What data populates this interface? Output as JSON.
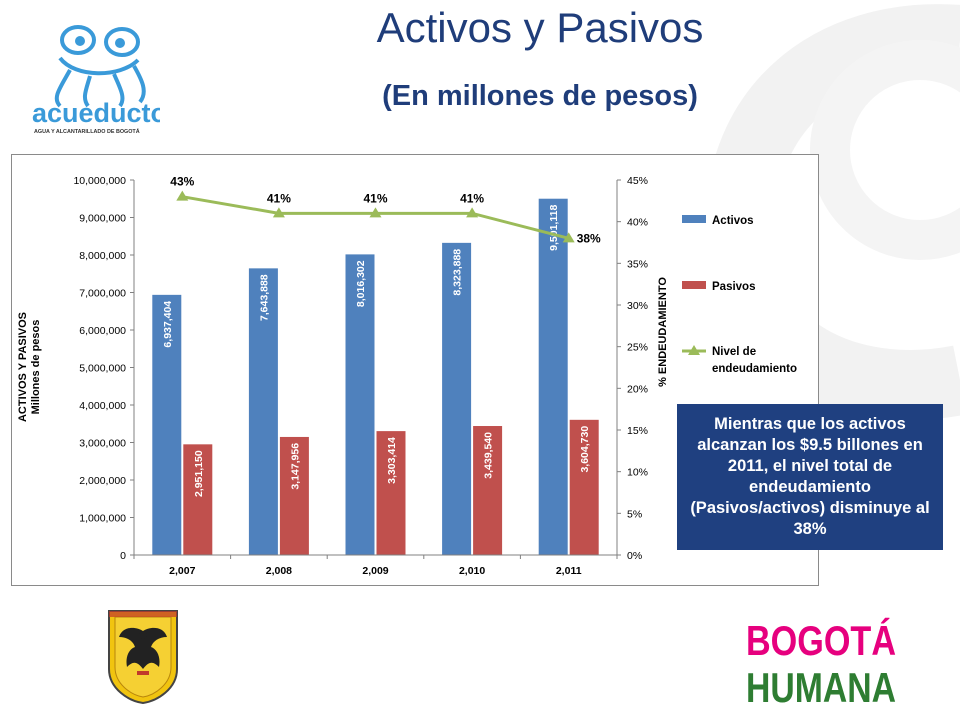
{
  "header": {
    "title": "Activos y Pasivos",
    "subtitle": "(En millones de pesos)"
  },
  "logos": {
    "acueducto_text": "acueducto",
    "acueducto_tagline": "AGUA Y ALCANTARILLADO DE BOGOTÁ",
    "bogota_line1": "BOGOTÁ",
    "bogota_line2": "HUMANA"
  },
  "callout": {
    "text": "Mientras que los activos alcanzan los $9.5 billones en 2011, el nivel total de endeudamiento (Pasivos/activos) disminuye al 38%"
  },
  "colors": {
    "activos": "#4f81bd",
    "pasivos": "#c0504d",
    "nivel": "#9bbb59",
    "title": "#1f3d7a",
    "callout_bg": "#1f4080"
  },
  "chart_data": {
    "type": "bar",
    "categories": [
      "2,007",
      "2,008",
      "2,009",
      "2,010",
      "2,011"
    ],
    "series": [
      {
        "name": "Activos",
        "type": "bar",
        "axis": "left",
        "values": [
          6937404,
          7643888,
          8016302,
          8323888,
          9501118
        ],
        "labels": [
          "6,937,404",
          "7,643,888",
          "8,016,302",
          "8,323,888",
          "9,501,118"
        ]
      },
      {
        "name": "Pasivos",
        "type": "bar",
        "axis": "left",
        "values": [
          2951150,
          3147956,
          3303414,
          3439540,
          3604730
        ],
        "labels": [
          "2,951,150",
          "3,147,956",
          "3,303,414",
          "3,439,540",
          "3,604,730"
        ]
      },
      {
        "name": "Nivel de endeudamiento",
        "type": "line",
        "axis": "right",
        "values": [
          0.43,
          0.41,
          0.41,
          0.41,
          0.38
        ],
        "labels": [
          "43%",
          "41%",
          "41%",
          "41%",
          "38%"
        ]
      }
    ],
    "ylabel_line1": "ACTIVOS Y PASIVOS",
    "ylabel_line2": "Millones de pesos",
    "y2label": "% ENDEUDAMIENTO",
    "ylim": [
      0,
      10000000
    ],
    "y2lim": [
      0,
      0.45
    ],
    "yticks": [
      "0",
      "1,000,000",
      "2,000,000",
      "3,000,000",
      "4,000,000",
      "5,000,000",
      "6,000,000",
      "7,000,000",
      "8,000,000",
      "9,000,000",
      "10,000,000"
    ],
    "y2ticks": [
      "0%",
      "5%",
      "10%",
      "15%",
      "20%",
      "25%",
      "30%",
      "35%",
      "40%",
      "45%"
    ],
    "legend_position": "right",
    "grid": false
  }
}
